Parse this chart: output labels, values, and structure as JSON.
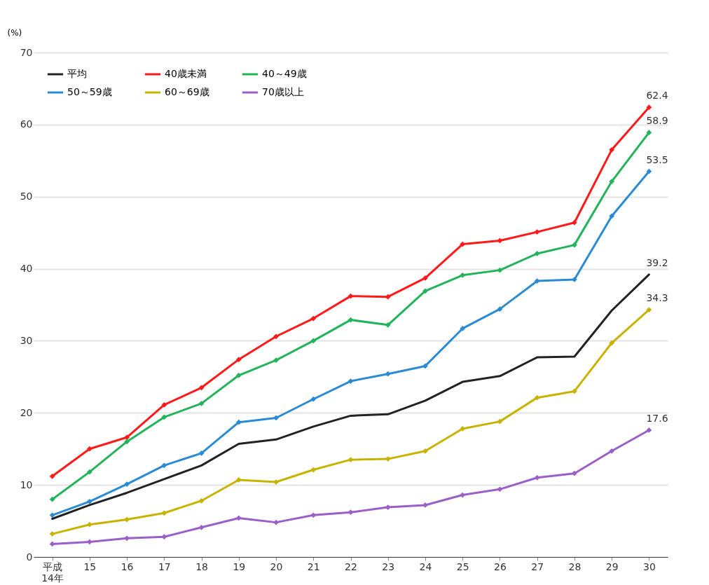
{
  "chart_data": {
    "type": "line",
    "ylabel": "(%)",
    "categories": [
      "平成\n14年",
      "15",
      "16",
      "17",
      "18",
      "19",
      "20",
      "21",
      "22",
      "23",
      "24",
      "25",
      "26",
      "27",
      "28",
      "29",
      "30"
    ],
    "ylim": [
      0,
      70
    ],
    "yticks": [
      0,
      10,
      20,
      30,
      40,
      50,
      60,
      70
    ],
    "grid": "y",
    "legend": "top left",
    "series": [
      {
        "name": "平均",
        "color": "#222222",
        "marker": "none",
        "values": [
          5.3,
          7.2,
          8.9,
          10.8,
          12.7,
          15.7,
          16.3,
          18.1,
          19.6,
          19.8,
          21.7,
          24.3,
          25.1,
          27.7,
          27.8,
          34.2,
          39.2
        ],
        "value_labels": [
          null,
          null,
          null,
          null,
          null,
          null,
          null,
          null,
          null,
          null,
          null,
          null,
          null,
          null,
          null,
          null,
          "39.2"
        ]
      },
      {
        "name": "40歳未満",
        "color": "#ff1a1a",
        "marker": "diamond",
        "values": [
          11.2,
          15.0,
          16.6,
          21.1,
          23.5,
          27.4,
          30.6,
          33.1,
          36.2,
          36.1,
          38.7,
          43.4,
          43.9,
          45.1,
          46.4,
          56.5,
          62.4
        ],
        "value_labels": [
          null,
          null,
          null,
          null,
          null,
          null,
          null,
          null,
          null,
          null,
          null,
          null,
          null,
          null,
          null,
          null,
          "62.4"
        ]
      },
      {
        "name": "40～49歳",
        "color": "#22b45a",
        "marker": "diamond",
        "values": [
          8.0,
          11.8,
          16.0,
          19.4,
          21.3,
          25.2,
          27.3,
          30.0,
          32.9,
          32.2,
          36.9,
          39.1,
          39.8,
          42.1,
          43.3,
          52.1,
          58.9
        ],
        "value_labels": [
          null,
          null,
          null,
          null,
          null,
          null,
          null,
          null,
          null,
          null,
          null,
          null,
          null,
          null,
          null,
          null,
          "58.9"
        ]
      },
      {
        "name": "50～59歳",
        "color": "#2a8ad4",
        "marker": "diamond",
        "values": [
          5.8,
          7.7,
          10.1,
          12.7,
          14.4,
          18.7,
          19.3,
          21.9,
          24.4,
          25.4,
          26.5,
          31.7,
          34.4,
          38.3,
          38.5,
          47.3,
          53.5
        ],
        "value_labels": [
          null,
          null,
          null,
          null,
          null,
          null,
          null,
          null,
          null,
          null,
          null,
          null,
          null,
          null,
          null,
          null,
          "53.5"
        ]
      },
      {
        "name": "60～69歳",
        "color": "#c8b400",
        "marker": "diamond",
        "values": [
          3.2,
          4.5,
          5.2,
          6.1,
          7.8,
          10.7,
          10.4,
          12.1,
          13.5,
          13.6,
          14.7,
          17.8,
          18.8,
          22.1,
          23.0,
          29.7,
          34.3
        ],
        "value_labels": [
          null,
          null,
          null,
          null,
          null,
          null,
          null,
          null,
          null,
          null,
          null,
          null,
          null,
          null,
          null,
          null,
          "34.3"
        ]
      },
      {
        "name": "70歳以上",
        "color": "#9a5fc8",
        "marker": "diamond",
        "values": [
          1.8,
          2.1,
          2.6,
          2.8,
          4.1,
          5.4,
          4.8,
          5.8,
          6.2,
          6.9,
          7.2,
          8.6,
          9.4,
          11.0,
          11.6,
          14.7,
          17.6
        ],
        "value_labels": [
          null,
          null,
          null,
          null,
          null,
          null,
          null,
          null,
          null,
          null,
          null,
          null,
          null,
          null,
          null,
          null,
          "17.6"
        ]
      }
    ]
  }
}
